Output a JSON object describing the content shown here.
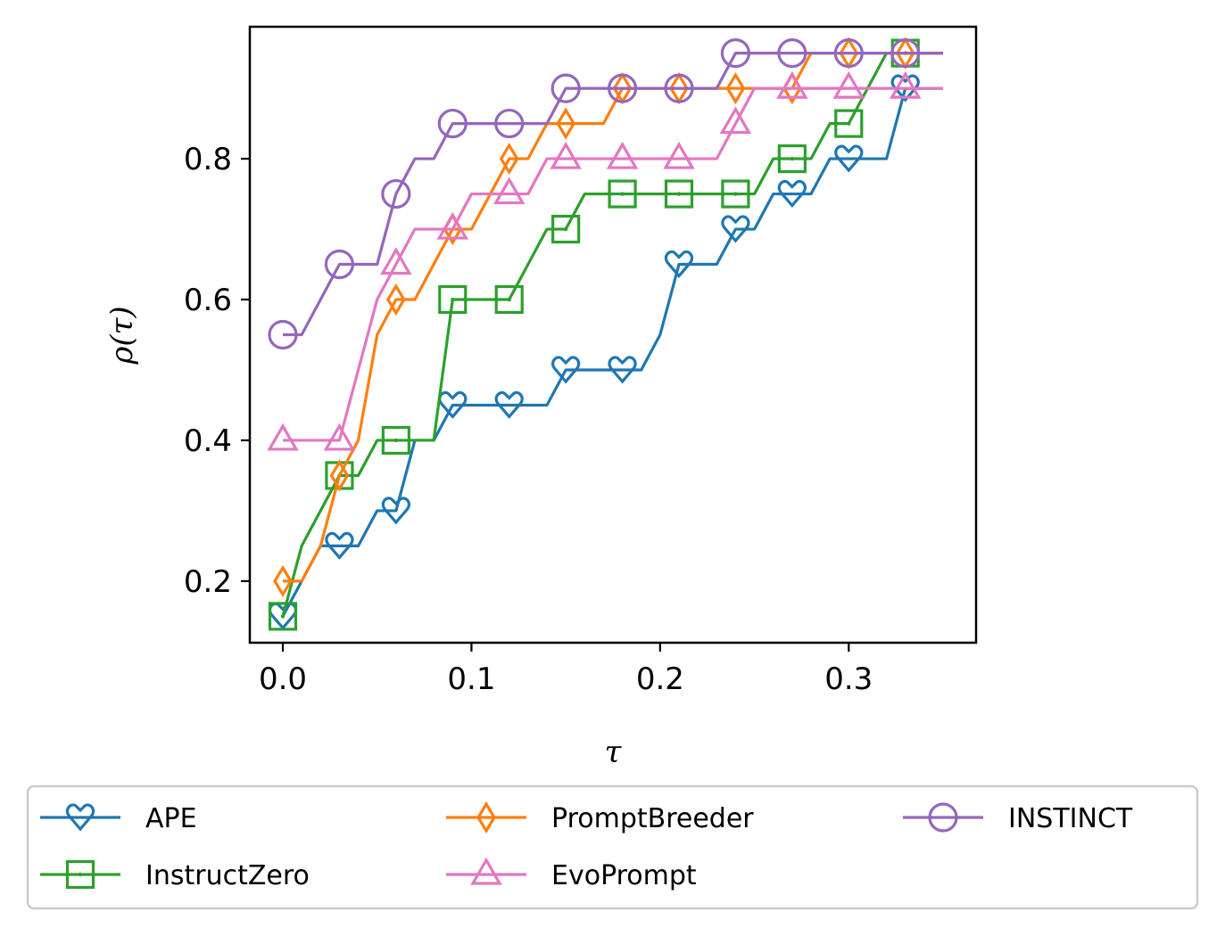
{
  "chart_data": {
    "type": "line",
    "title": "",
    "xlabel": "τ",
    "ylabel": "ρ(τ)",
    "xlim": [
      -0.0175,
      0.3675
    ],
    "ylim": [
      0.1125,
      0.9875
    ],
    "xticks": [
      0.0,
      0.1,
      0.2,
      0.3
    ],
    "xtick_labels": [
      "0.0",
      "0.1",
      "0.2",
      "0.3"
    ],
    "yticks": [
      0.2,
      0.4,
      0.6,
      0.8
    ],
    "ytick_labels": [
      "0.2",
      "0.4",
      "0.6",
      "0.8"
    ],
    "grid": false,
    "legend_position": "bottom",
    "series": [
      {
        "name": "APE",
        "color": "#1f77b4",
        "marker": "heart",
        "x": [
          0.0,
          0.01,
          0.02,
          0.03,
          0.04,
          0.05,
          0.06,
          0.07,
          0.08,
          0.09,
          0.1,
          0.11,
          0.12,
          0.13,
          0.14,
          0.15,
          0.16,
          0.17,
          0.18,
          0.19,
          0.2,
          0.21,
          0.22,
          0.23,
          0.24,
          0.25,
          0.26,
          0.27,
          0.28,
          0.29,
          0.3,
          0.31,
          0.32,
          0.33,
          0.34,
          0.35
        ],
        "y": [
          0.15,
          0.2,
          0.25,
          0.25,
          0.25,
          0.3,
          0.3,
          0.4,
          0.4,
          0.45,
          0.45,
          0.45,
          0.45,
          0.45,
          0.45,
          0.5,
          0.5,
          0.5,
          0.5,
          0.5,
          0.55,
          0.65,
          0.65,
          0.65,
          0.7,
          0.7,
          0.75,
          0.75,
          0.75,
          0.8,
          0.8,
          0.8,
          0.8,
          0.9,
          0.9,
          0.9
        ],
        "marker_x": [
          0.0,
          0.03,
          0.06,
          0.09,
          0.12,
          0.15,
          0.18,
          0.21,
          0.24,
          0.27,
          0.3,
          0.33
        ]
      },
      {
        "name": "InstructZero",
        "color": "#2ca02c",
        "marker": "square",
        "x": [
          0.0,
          0.01,
          0.02,
          0.03,
          0.04,
          0.05,
          0.06,
          0.07,
          0.08,
          0.09,
          0.1,
          0.11,
          0.12,
          0.13,
          0.14,
          0.15,
          0.16,
          0.17,
          0.18,
          0.19,
          0.2,
          0.21,
          0.22,
          0.23,
          0.24,
          0.25,
          0.26,
          0.27,
          0.28,
          0.29,
          0.3,
          0.31,
          0.32,
          0.33,
          0.34,
          0.35
        ],
        "y": [
          0.15,
          0.25,
          0.3,
          0.35,
          0.35,
          0.4,
          0.4,
          0.4,
          0.4,
          0.6,
          0.6,
          0.6,
          0.6,
          0.65,
          0.7,
          0.7,
          0.75,
          0.75,
          0.75,
          0.75,
          0.75,
          0.75,
          0.75,
          0.75,
          0.75,
          0.75,
          0.8,
          0.8,
          0.8,
          0.85,
          0.85,
          0.9,
          0.95,
          0.95,
          0.95,
          0.95
        ],
        "marker_x": [
          0.0,
          0.03,
          0.06,
          0.09,
          0.12,
          0.15,
          0.18,
          0.21,
          0.24,
          0.27,
          0.3,
          0.33
        ]
      },
      {
        "name": "PromptBreeder",
        "color": "#ff7f0e",
        "marker": "thin_diamond",
        "x": [
          0.0,
          0.01,
          0.02,
          0.03,
          0.04,
          0.05,
          0.06,
          0.07,
          0.08,
          0.09,
          0.1,
          0.11,
          0.12,
          0.13,
          0.14,
          0.15,
          0.16,
          0.17,
          0.18,
          0.19,
          0.2,
          0.21,
          0.22,
          0.23,
          0.24,
          0.25,
          0.26,
          0.27,
          0.28,
          0.29,
          0.3,
          0.31,
          0.32,
          0.33,
          0.34,
          0.35
        ],
        "y": [
          0.2,
          0.2,
          0.25,
          0.35,
          0.4,
          0.55,
          0.6,
          0.6,
          0.65,
          0.7,
          0.7,
          0.75,
          0.8,
          0.8,
          0.85,
          0.85,
          0.85,
          0.85,
          0.9,
          0.9,
          0.9,
          0.9,
          0.9,
          0.9,
          0.9,
          0.9,
          0.9,
          0.9,
          0.95,
          0.95,
          0.95,
          0.95,
          0.95,
          0.95,
          0.95,
          0.95
        ],
        "marker_x": [
          0.0,
          0.03,
          0.06,
          0.09,
          0.12,
          0.15,
          0.18,
          0.21,
          0.24,
          0.27,
          0.3,
          0.33
        ]
      },
      {
        "name": "EvoPrompt",
        "color": "#e377c2",
        "marker": "triangle",
        "x": [
          0.0,
          0.01,
          0.02,
          0.03,
          0.04,
          0.05,
          0.06,
          0.07,
          0.08,
          0.09,
          0.1,
          0.11,
          0.12,
          0.13,
          0.14,
          0.15,
          0.16,
          0.17,
          0.18,
          0.19,
          0.2,
          0.21,
          0.22,
          0.23,
          0.24,
          0.25,
          0.26,
          0.27,
          0.28,
          0.29,
          0.3,
          0.31,
          0.32,
          0.33,
          0.34,
          0.35
        ],
        "y": [
          0.4,
          0.4,
          0.4,
          0.4,
          0.5,
          0.6,
          0.65,
          0.7,
          0.7,
          0.7,
          0.75,
          0.75,
          0.75,
          0.75,
          0.8,
          0.8,
          0.8,
          0.8,
          0.8,
          0.8,
          0.8,
          0.8,
          0.8,
          0.8,
          0.85,
          0.9,
          0.9,
          0.9,
          0.9,
          0.9,
          0.9,
          0.9,
          0.9,
          0.9,
          0.9,
          0.9
        ],
        "marker_x": [
          0.0,
          0.03,
          0.06,
          0.09,
          0.12,
          0.15,
          0.18,
          0.21,
          0.24,
          0.27,
          0.3,
          0.33
        ]
      },
      {
        "name": "INSTINCT",
        "color": "#9467bd",
        "marker": "circle",
        "x": [
          0.0,
          0.01,
          0.02,
          0.03,
          0.04,
          0.05,
          0.06,
          0.07,
          0.08,
          0.09,
          0.1,
          0.11,
          0.12,
          0.13,
          0.14,
          0.15,
          0.16,
          0.17,
          0.18,
          0.19,
          0.2,
          0.21,
          0.22,
          0.23,
          0.24,
          0.25,
          0.26,
          0.27,
          0.28,
          0.29,
          0.3,
          0.31,
          0.32,
          0.33,
          0.34,
          0.35
        ],
        "y": [
          0.55,
          0.55,
          0.6,
          0.65,
          0.65,
          0.65,
          0.75,
          0.8,
          0.8,
          0.85,
          0.85,
          0.85,
          0.85,
          0.85,
          0.85,
          0.9,
          0.9,
          0.9,
          0.9,
          0.9,
          0.9,
          0.9,
          0.9,
          0.9,
          0.95,
          0.95,
          0.95,
          0.95,
          0.95,
          0.95,
          0.95,
          0.95,
          0.95,
          0.95,
          0.95,
          0.95
        ],
        "marker_x": [
          0.0,
          0.03,
          0.06,
          0.09,
          0.12,
          0.15,
          0.18,
          0.21,
          0.24,
          0.27,
          0.3,
          0.33
        ]
      }
    ]
  }
}
